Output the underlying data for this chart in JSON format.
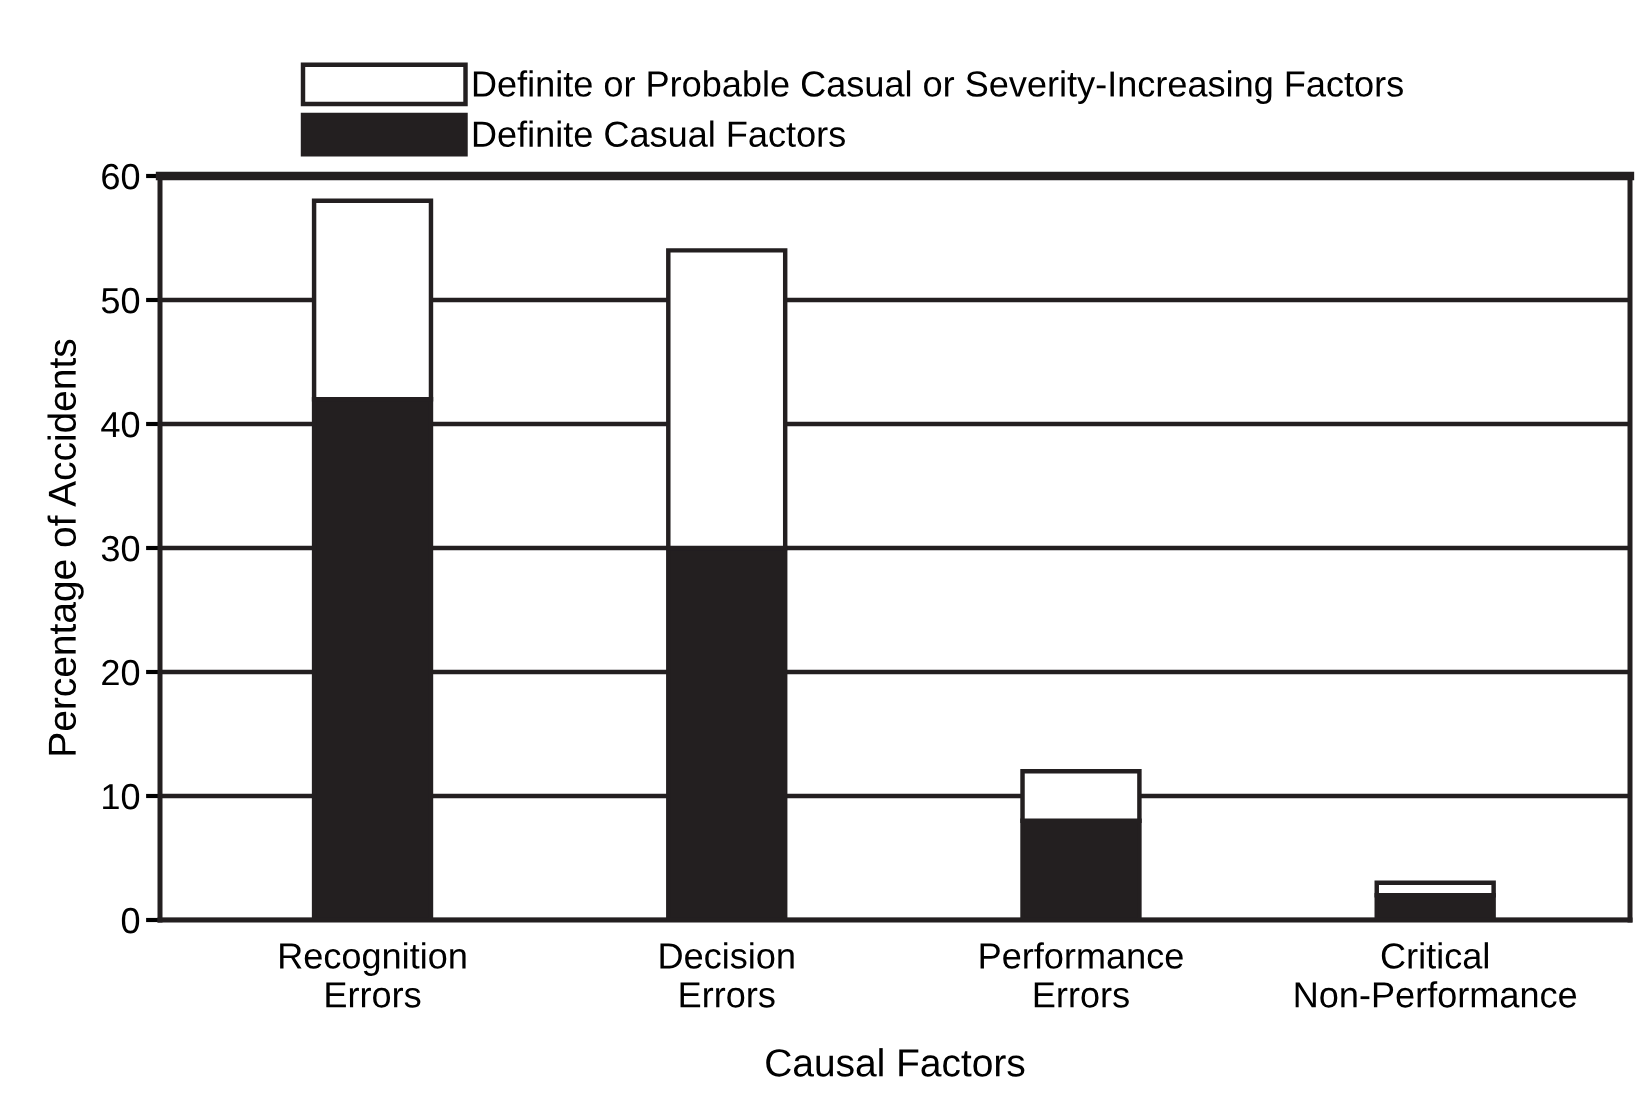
{
  "chart_data": {
    "type": "bar",
    "stacked": true,
    "xlabel": "Causal Factors",
    "ylabel": "Percentage of Accidents",
    "categories": [
      "Recognition\nErrors",
      "Decision\nErrors",
      "Performance\nErrors",
      "Critical\nNon-Performance"
    ],
    "series": [
      {
        "name": "Definite Casual Factors",
        "color": "#231f20",
        "values": [
          42,
          30,
          8,
          2
        ]
      },
      {
        "name": "Definite or Probable Casual or Severity-Increasing Factors",
        "color": "#ffffff",
        "values": [
          16,
          24,
          4,
          1
        ]
      }
    ],
    "ylim": [
      0,
      60
    ],
    "yticks": [
      0,
      10,
      20,
      30,
      40,
      50,
      60
    ],
    "grid": "y",
    "legend": "top"
  }
}
